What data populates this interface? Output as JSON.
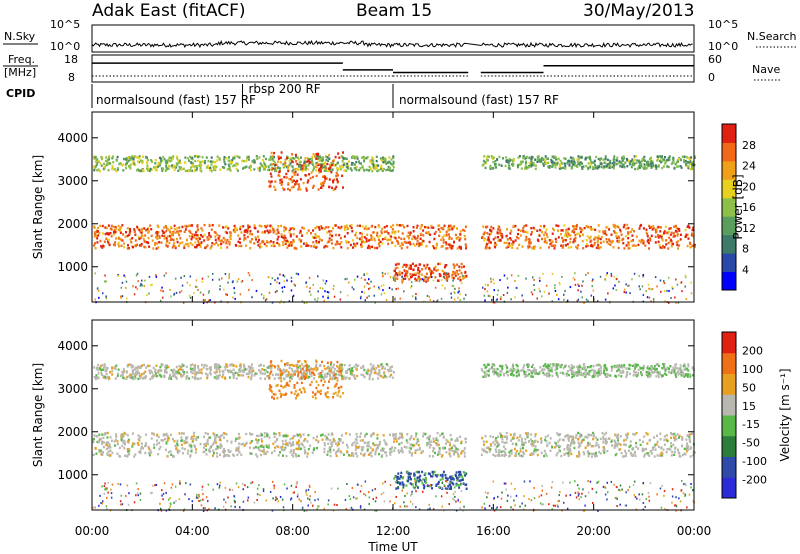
{
  "header": {
    "radar": "Adak East (fitACF)",
    "beam": "Beam 15",
    "date": "30/May/2013"
  },
  "sky_panel": {
    "left_label": "N.Sky",
    "right_label": "N.Search",
    "left_ticks": [
      "10^5",
      "10^0"
    ],
    "right_ticks": [
      "10^5",
      "10^0"
    ]
  },
  "freq_panel": {
    "left_label_line1": "Freq.",
    "left_label_line2": "[MHz]",
    "right_label": "Nave",
    "left_ticks": [
      "18",
      "8"
    ],
    "right_ticks": [
      "60",
      "0"
    ]
  },
  "cpid_panel": {
    "label": "CPID",
    "programs": [
      "normalsound (fast) 157 RF",
      "rbsp 200 RF",
      "normalsound (fast) 157 RF"
    ]
  },
  "time_axis": {
    "ticks": [
      "00:00",
      "04:00",
      "08:00",
      "12:00",
      "16:00",
      "20:00",
      "00:00"
    ],
    "label": "Time UT"
  },
  "power_panel": {
    "ylabel": "Slant Range [km]",
    "yticks": [
      "4000",
      "3000",
      "2000",
      "1000"
    ],
    "colorbar_label": "Power [dB]",
    "colorbar_ticks": [
      "28",
      "24",
      "20",
      "16",
      "12",
      "8",
      "4"
    ]
  },
  "velocity_panel": {
    "ylabel": "Slant Range [km]",
    "yticks": [
      "4000",
      "3000",
      "2000",
      "1000"
    ],
    "colorbar_label": "Velocity [m s⁻¹]",
    "colorbar_ticks": [
      "200",
      "100",
      "50",
      "15",
      "-15",
      "-50",
      "-100",
      "-200"
    ]
  },
  "colors": {
    "power_scale": [
      "#0000ff",
      "#2a48a8",
      "#3e7a6a",
      "#5a9e5e",
      "#8cc048",
      "#e8d020",
      "#f0a018",
      "#f06818",
      "#e02010"
    ],
    "velocity_scale": [
      "#2b2bd8",
      "#2f4aa8",
      "#2d7d3a",
      "#58b848",
      "#b8b8b0",
      "#e8a020",
      "#f07018",
      "#e02010"
    ]
  },
  "chart_data": {
    "type": "heatmap",
    "title": "Adak East (fitACF) Beam 15 30/May/2013",
    "xlabel": "Time UT",
    "ylabel": "Slant Range [km]",
    "xlim": [
      0,
      24
    ],
    "ylim": [
      180,
      4600
    ],
    "x_tick_values": [
      0,
      4,
      8,
      12,
      16,
      20,
      24
    ],
    "data_gap_hours": [
      14.9,
      15.5
    ],
    "cpid_segments": [
      {
        "program": "normalsound (fast) 157 RF",
        "start": 0,
        "end": 6
      },
      {
        "program": "rbsp 200 RF",
        "start": 6,
        "end": 12
      },
      {
        "program": "normalsound (fast) 157 RF",
        "start": 12,
        "end": 24
      }
    ],
    "frequency_mhz": [
      {
        "start": 0,
        "end": 6,
        "value": 15
      },
      {
        "start": 6,
        "end": 10,
        "value": 15
      },
      {
        "start": 10,
        "end": 12,
        "value": 12.5
      },
      {
        "start": 12,
        "end": 15,
        "value": 11.5
      },
      {
        "start": 15.5,
        "end": 18,
        "value": 11.5
      },
      {
        "start": 18,
        "end": 24,
        "value": 14
      }
    ],
    "power_db_colorbar": [
      4,
      8,
      12,
      16,
      20,
      24,
      28
    ],
    "velocity_colorbar": [
      -200,
      -100,
      -50,
      -15,
      15,
      50,
      100,
      200
    ],
    "echo_bands": [
      {
        "name": "near range E region",
        "start": 0,
        "end": 24,
        "range_km": [
          1450,
          2000
        ],
        "power_db": 24,
        "velocity_ms": 0
      },
      {
        "name": "far range F region",
        "start": 0,
        "end": 12,
        "range_km": [
          3250,
          3600
        ],
        "power_db": 14,
        "velocity_ms": 0
      },
      {
        "name": "enhanced morning patch",
        "start": 7,
        "end": 10,
        "range_km": [
          2800,
          3700
        ],
        "power_db": 26,
        "velocity_ms": -50
      },
      {
        "name": "afternoon band",
        "start": 15.5,
        "end": 24,
        "range_km": [
          3300,
          3600
        ],
        "power_db": 12,
        "velocity_ms": 15
      },
      {
        "name": "midday low range",
        "start": 12,
        "end": 15,
        "range_km": [
          700,
          1100
        ],
        "power_db": 26,
        "velocity_ms": 60
      }
    ]
  }
}
